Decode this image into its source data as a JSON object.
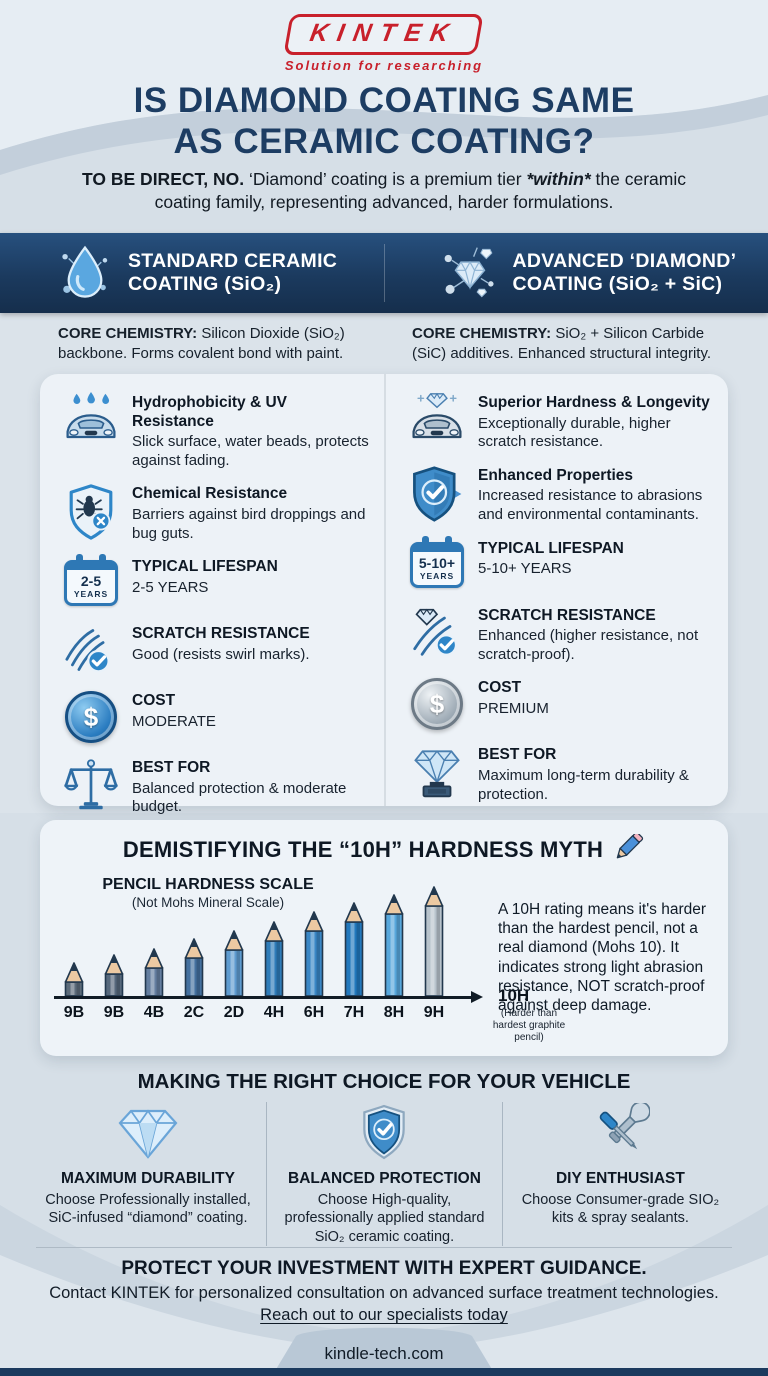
{
  "logo": {
    "brand": "KINTEK",
    "tagline": "Solution for researching",
    "brand_color": "#c8202b"
  },
  "title": {
    "line1": "IS DIAMOND COATING SAME",
    "line2": "AS CERAMIC COATING?"
  },
  "intro": {
    "lead": "TO BE DIRECT, NO.",
    "body1": " ‘Diamond’ coating is a premium tier ",
    "emph": "*within*",
    "body2": " the ceramic coating family, representing advanced, harder formulations."
  },
  "banner": {
    "left": {
      "icon": "water-droplet-icon",
      "title_l1": "STANDARD CERAMIC",
      "title_l2": "COATING (SiO₂)"
    },
    "right": {
      "icon": "diamond-network-icon",
      "title_l1": "ADVANCED ‘DIAMOND’",
      "title_l2": "COATING (SiO₂ + SiC)"
    }
  },
  "core": {
    "left": {
      "label": "CORE CHEMISTRY:",
      "text": " Silicon Dioxide (SiO₂) backbone. Forms covalent bond with paint."
    },
    "right": {
      "label": "CORE CHEMISTRY:",
      "text": " SiO₂ + Silicon Carbide (SiC) additives. Enhanced structural integrity."
    }
  },
  "comparison": {
    "left": {
      "rows": [
        {
          "icon": "car-water-icon",
          "title": "Hydrophobicity & UV Resistance",
          "text": "Slick surface, water beads, protects against fading."
        },
        {
          "icon": "shield-bug-icon",
          "title": "Chemical Resistance",
          "text": "Barriers against bird droppings and bug guts."
        },
        {
          "icon": "calendar-icon",
          "icon_value": "2-5",
          "icon_unit": "YEARS",
          "title": "TYPICAL LIFESPAN",
          "text": "2-5 YEARS"
        },
        {
          "icon": "scratch-check-icon",
          "title": "SCRATCH RESISTANCE",
          "text": "Good (resists swirl marks)."
        },
        {
          "icon": "dollar-coin-icon",
          "title": "COST",
          "text": "MODERATE"
        },
        {
          "icon": "balance-scale-icon",
          "title": "BEST FOR",
          "text": "Balanced protection & moderate budget."
        }
      ]
    },
    "right": {
      "rows": [
        {
          "icon": "car-diamond-icon",
          "title": "Superior Hardness & Longevity",
          "text": "Exceptionally durable, higher scratch resistance."
        },
        {
          "icon": "shield-check-icon",
          "title": "Enhanced Properties",
          "text": "Increased resistance to abrasions and environmental contaminants."
        },
        {
          "icon": "calendar-icon",
          "icon_value": "5-10+",
          "icon_unit": "YEARS",
          "title": "TYPICAL LIFESPAN",
          "text": "5-10+ YEARS"
        },
        {
          "icon": "diamond-scratch-icon",
          "title": "SCRATCH RESISTANCE",
          "text": "Enhanced (higher resistance, not scratch-proof)."
        },
        {
          "icon": "dollar-coin-silver-icon",
          "title": "COST",
          "text": "PREMIUM"
        },
        {
          "icon": "diamond-trophy-icon",
          "title": "BEST FOR",
          "text": "Maximum long-term durability & protection."
        }
      ]
    }
  },
  "icons": {
    "dollar_glyph": "$"
  },
  "myth": {
    "title": "DEMISTIFYING THE “10H” HARDNESS MYTH",
    "title_icon": "pencil-icon",
    "paragraph": "A 10H rating means it's harder than the hardest pencil, not a real diamond (Mohs 10). It indicates strong light abrasion resistance, NOT scratch-proof against deep damage."
  },
  "chart_data": {
    "type": "bar",
    "title": "PENCIL HARDNESS SCALE",
    "subtitle": "(Not Mohs Mineral Scale)",
    "categories": [
      "9B",
      "9B",
      "4B",
      "2C",
      "2D",
      "4H",
      "6H",
      "7H",
      "8H",
      "9H"
    ],
    "values": [
      34,
      42,
      48,
      58,
      66,
      75,
      85,
      94,
      102,
      110
    ],
    "ylabel": "relative pencil hardness (bar height, px)",
    "end_label": "10H",
    "end_note": "(Harder than hardest graphite pencil)",
    "legend": "none",
    "grid": false,
    "bar_colors": [
      "#5c6b7a",
      "#56687c",
      "#647ea0",
      "#44709f",
      "#5e9bd0",
      "#2f7cb9",
      "#3a87c6",
      "#2278bd",
      "#57a7dc",
      "#b8c3cc"
    ]
  },
  "choices": {
    "title": "MAKING THE RIGHT CHOICE FOR YOUR VEHICLE",
    "items": [
      {
        "icon": "diamond-icon",
        "title": "MAXIMUM DURABILITY",
        "text": "Choose Professionally installed, SiC-infused “diamond” coating."
      },
      {
        "icon": "shield-check-icon",
        "title": "BALANCED PROTECTION",
        "text": "Choose High-quality, professionally applied standard SiO₂ ceramic coating."
      },
      {
        "icon": "tools-icon",
        "title": "DIY ENTHUSIAST",
        "text": "Choose Consumer-grade SIO₂ kits & spray sealants."
      }
    ]
  },
  "footer": {
    "headline": "PROTECT YOUR INVESTMENT WITH EXPERT GUIDANCE.",
    "contact": "Contact KINTEK for personalized consultation on advanced surface treatment technologies.",
    "link": "Reach out to our specialists today",
    "website": "kindle-tech.com"
  },
  "colors": {
    "accent_red": "#c8202b",
    "navy": "#1b3a5e",
    "title_navy": "#1d3d63",
    "icon_blue": "#2e86c8"
  }
}
